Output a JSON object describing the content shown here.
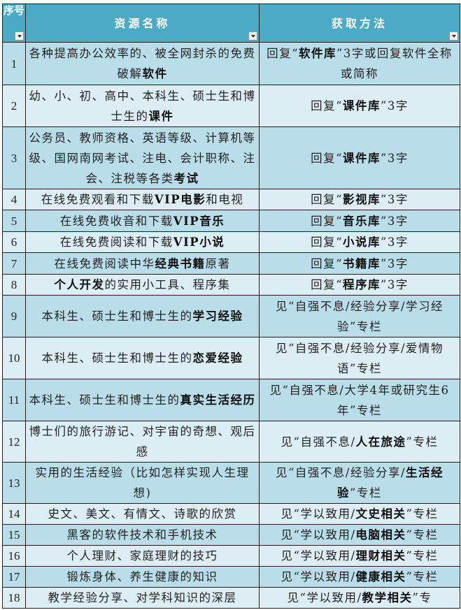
{
  "colors": {
    "header": "#4babc6",
    "row_odd": "#b9dee9",
    "row_even": "#dcedf3"
  },
  "headers": {
    "num": "序号",
    "name": "资源名称",
    "method": "获取方法",
    "filter_icon": "dropdown-filter-icon"
  },
  "rows": [
    {
      "num": "1",
      "name": [
        {
          "t": "各种提高办公效率的、被全网封杀的免费破解"
        },
        {
          "t": "软件",
          "b": true
        }
      ],
      "method": [
        {
          "t": "回复“"
        },
        {
          "t": "软件库",
          "b": true
        },
        {
          "t": "”3字或回复软件全称或简称"
        }
      ]
    },
    {
      "num": "2",
      "name": [
        {
          "t": "幼、小、初、高中、本科生、硕士生和博士生的"
        },
        {
          "t": "课件",
          "b": true
        }
      ],
      "method": [
        {
          "t": "回复“"
        },
        {
          "t": "课件库",
          "b": true
        },
        {
          "t": "”3字"
        }
      ]
    },
    {
      "num": "3",
      "name": [
        {
          "t": "公务员、教师资格、英语等级、计算机等级、国网南网考试、注电、会计职称、注会、注税等各类"
        },
        {
          "t": "考试",
          "b": true
        }
      ],
      "method": [
        {
          "t": "回复“"
        },
        {
          "t": "课件库",
          "b": true
        },
        {
          "t": "”3字"
        }
      ]
    },
    {
      "num": "4",
      "name": [
        {
          "t": "在线免费观看和下载"
        },
        {
          "t": "VIP电影",
          "b": true
        },
        {
          "t": "和电视"
        }
      ],
      "method": [
        {
          "t": "回复“"
        },
        {
          "t": "影视库",
          "b": true
        },
        {
          "t": "”3字"
        }
      ]
    },
    {
      "num": "5",
      "name": [
        {
          "t": "在线免费收音和下载"
        },
        {
          "t": "VIP音乐",
          "b": true
        }
      ],
      "method": [
        {
          "t": "回复“"
        },
        {
          "t": "音乐库",
          "b": true
        },
        {
          "t": "”3字"
        }
      ]
    },
    {
      "num": "6",
      "name": [
        {
          "t": "在线免费阅读和下载"
        },
        {
          "t": "VIP小说",
          "b": true
        }
      ],
      "method": [
        {
          "t": "回复“"
        },
        {
          "t": "小说库",
          "b": true
        },
        {
          "t": "”3字"
        }
      ]
    },
    {
      "num": "7",
      "name": [
        {
          "t": "在线免费阅读中华"
        },
        {
          "t": "经典书籍",
          "b": true
        },
        {
          "t": "原著"
        }
      ],
      "method": [
        {
          "t": "回复“"
        },
        {
          "t": "书籍库",
          "b": true
        },
        {
          "t": "”3字"
        }
      ]
    },
    {
      "num": "8",
      "name": [
        {
          "t": "个人开发",
          "b": true
        },
        {
          "t": "的实用小工具、程序集"
        }
      ],
      "method": [
        {
          "t": "回复“"
        },
        {
          "t": "程序库",
          "b": true
        },
        {
          "t": "”3字"
        }
      ]
    },
    {
      "num": "9",
      "name": [
        {
          "t": "本科生、硕士生和博士生的"
        },
        {
          "t": "学习经验",
          "b": true
        }
      ],
      "method": [
        {
          "t": "见“自强不息/经验分享/学习经验”专栏"
        }
      ]
    },
    {
      "num": "10",
      "name": [
        {
          "t": "本科生、硕士生和博士生的"
        },
        {
          "t": "恋爱经验",
          "b": true
        }
      ],
      "method": [
        {
          "t": "见“自强不息/经验分享/爱情物语”专栏"
        }
      ]
    },
    {
      "num": "11",
      "name": [
        {
          "t": "本科生、硕士生和博士生的"
        },
        {
          "t": "真实生活经历",
          "b": true
        }
      ],
      "method": [
        {
          "t": "见“自强不息/大学4年或研究生6年”专栏"
        }
      ]
    },
    {
      "num": "12",
      "name": [
        {
          "t": "博士们的旅行游记、对宇宙的奇想、观后感"
        }
      ],
      "method": [
        {
          "t": "见“自强不息/"
        },
        {
          "t": "人在旅途",
          "b": true
        },
        {
          "t": "”专栏"
        }
      ]
    },
    {
      "num": "13",
      "name": [
        {
          "t": "实用的生活经验（比如怎样实现人生理想)"
        }
      ],
      "method": [
        {
          "t": "见“自强不息/经验分享/"
        },
        {
          "t": "生活经验",
          "b": true
        },
        {
          "t": "”专栏"
        }
      ]
    },
    {
      "num": "14",
      "name": [
        {
          "t": "史文、美文、有情文、诗歌的欣赏"
        }
      ],
      "method": [
        {
          "t": "见“学以致用/"
        },
        {
          "t": "文史相关",
          "b": true
        },
        {
          "t": "”专栏"
        }
      ]
    },
    {
      "num": "15",
      "name": [
        {
          "t": "黑客的软件技术和手机技术"
        }
      ],
      "method": [
        {
          "t": "见“学以致用/"
        },
        {
          "t": "电脑相关",
          "b": true
        },
        {
          "t": "”专栏"
        }
      ]
    },
    {
      "num": "16",
      "name": [
        {
          "t": "个人理财、家庭理财的技巧"
        }
      ],
      "method": [
        {
          "t": "见“学以致用/"
        },
        {
          "t": "理财相关",
          "b": true
        },
        {
          "t": "”专栏"
        }
      ]
    },
    {
      "num": "17",
      "name": [
        {
          "t": "锻炼身体、养生健康的知识"
        }
      ],
      "method": [
        {
          "t": "见“学以致用/"
        },
        {
          "t": "健康相关",
          "b": true
        },
        {
          "t": "”专栏"
        }
      ]
    },
    {
      "num": "18",
      "name": [
        {
          "t": "教学经验分享、对学科知识的深层"
        }
      ],
      "method": [
        {
          "t": "见“学以致用/"
        },
        {
          "t": "教学相关",
          "b": true
        },
        {
          "t": "”专"
        }
      ]
    }
  ]
}
